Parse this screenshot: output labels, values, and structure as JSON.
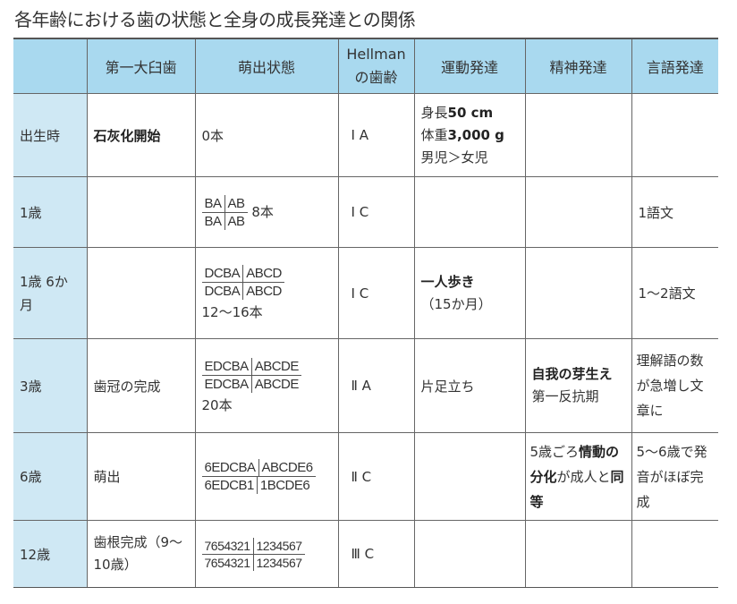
{
  "title": "各年齢における歯の状態と全身の成長発達との関係",
  "headers": [
    "",
    "第一大臼歯",
    "萌出状態",
    "Hellmanの歯齢",
    "運動発達",
    "精神発達",
    "言語発達"
  ],
  "rows": [
    {
      "age": "出生時",
      "molar": "石灰化開始",
      "eruption_text": "0本",
      "hellman": "Ⅰ A",
      "motor": [
        "身長",
        "50 cm",
        "体重",
        "3,000 g",
        "男児＞女児"
      ],
      "mental": "",
      "language": ""
    },
    {
      "age": "1歳",
      "molar": "",
      "formula": {
        "ur": "BA",
        "ul": "AB",
        "lr": "BA",
        "ll": "AB"
      },
      "suffix": "8本",
      "hellman": "Ⅰ C",
      "motor": [],
      "mental": "",
      "language": "1語文"
    },
    {
      "age": "1歳 6か月",
      "molar": "",
      "formula": {
        "ur": "DCBA",
        "ul": "ABCD",
        "lr": "DCBA",
        "ll": "ABCD"
      },
      "suffix": "12～16本",
      "hellman": "Ⅰ C",
      "motor": [
        "一人歩き",
        "（15か月）"
      ],
      "mental": "",
      "language": "1～2語文"
    },
    {
      "age": "3歳",
      "molar": "歯冠の完成",
      "formula": {
        "ur": "EDCBA",
        "ul": "ABCDE",
        "lr": "EDCBA",
        "ll": "ABCDE"
      },
      "suffix": "20本",
      "hellman": "Ⅱ A",
      "motor": [
        "片足立ち"
      ],
      "mental": [
        "自我の芽生え",
        "第一反抗期"
      ],
      "language": "理解語の数が急増し文章に"
    },
    {
      "age": "6歳",
      "molar": "萌出",
      "formula": {
        "ur": "6EDCBA",
        "ul": "ABCDE6",
        "lr": "6EDCB1",
        "ll": "1BCDE6"
      },
      "hellman": "Ⅱ C",
      "motor": [],
      "mental": [
        "5歳ごろ",
        "情動の分化",
        "が成人と",
        "同等"
      ],
      "language": "5～6歳で発音がほぼ完成"
    },
    {
      "age": "12歳",
      "molar": "歯根完成（9～10歳）",
      "formula": {
        "ur": "7654321",
        "ul": "1234567",
        "lr": "7654321",
        "ll": "1234567"
      },
      "hellman": "Ⅲ C",
      "motor": [],
      "mental": "",
      "language": ""
    }
  ]
}
